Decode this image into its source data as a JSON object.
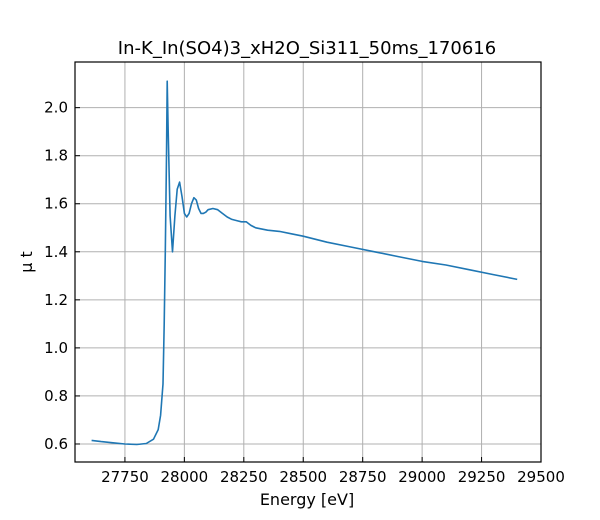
{
  "chart_data": {
    "type": "line",
    "title": "In-K_In(SO4)3_xH2O_Si311_50ms_170616",
    "xlabel": "Energy [eV]",
    "ylabel": "μ t",
    "xlim": [
      27540,
      29500
    ],
    "ylim": [
      0.525,
      2.19
    ],
    "xticks": [
      27750,
      28000,
      28250,
      28500,
      28750,
      29000,
      29250,
      29500
    ],
    "xtick_labels": [
      "27750",
      "28000",
      "28250",
      "28500",
      "28750",
      "29000",
      "29250",
      "29500"
    ],
    "yticks": [
      0.6,
      0.8,
      1.0,
      1.2,
      1.4,
      1.6,
      1.8,
      2.0
    ],
    "ytick_labels": [
      "0.6",
      "0.8",
      "1.0",
      "1.2",
      "1.4",
      "1.6",
      "1.8",
      "2.0"
    ],
    "grid": true,
    "series": [
      {
        "color": "#1f77b4",
        "x": [
          27610,
          27650,
          27700,
          27750,
          27800,
          27840,
          27870,
          27890,
          27900,
          27910,
          27915,
          27920,
          27925,
          27928,
          27932,
          27940,
          27950,
          27960,
          27970,
          27980,
          27990,
          28000,
          28010,
          28020,
          28030,
          28040,
          28050,
          28060,
          28070,
          28080,
          28090,
          28100,
          28120,
          28140,
          28160,
          28180,
          28200,
          28220,
          28240,
          28260,
          28280,
          28300,
          28350,
          28400,
          28450,
          28500,
          28600,
          28700,
          28800,
          28900,
          29000,
          29100,
          29200,
          29300,
          29400
        ],
        "y": [
          0.615,
          0.61,
          0.605,
          0.6,
          0.598,
          0.602,
          0.62,
          0.66,
          0.72,
          0.85,
          1.1,
          1.4,
          1.8,
          2.11,
          1.9,
          1.55,
          1.4,
          1.55,
          1.66,
          1.69,
          1.63,
          1.56,
          1.545,
          1.56,
          1.6,
          1.625,
          1.615,
          1.58,
          1.56,
          1.56,
          1.565,
          1.575,
          1.58,
          1.575,
          1.56,
          1.545,
          1.535,
          1.53,
          1.525,
          1.525,
          1.51,
          1.5,
          1.49,
          1.485,
          1.475,
          1.465,
          1.44,
          1.42,
          1.4,
          1.38,
          1.36,
          1.345,
          1.325,
          1.305,
          1.285
        ]
      }
    ]
  }
}
